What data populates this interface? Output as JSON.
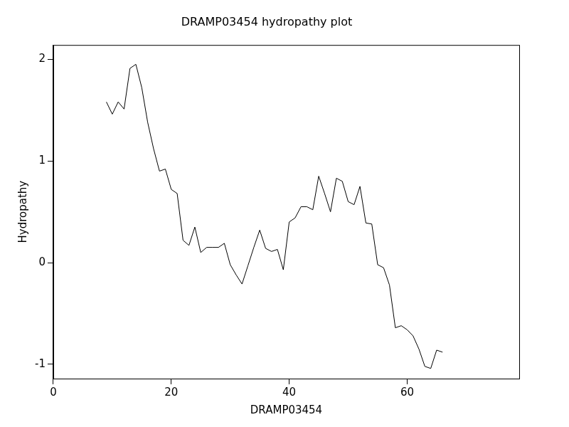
{
  "chart_data": {
    "type": "line",
    "title": "DRAMP03454 hydropathy plot",
    "x_label": "DRAMP03454",
    "y_label": "Hydropathy",
    "color": "#000000",
    "grid": false,
    "x": [
      9,
      10,
      11,
      12,
      13,
      14,
      15,
      16,
      17,
      18,
      19,
      20,
      21,
      22,
      23,
      24,
      25,
      26,
      27,
      28,
      29,
      30,
      31,
      32,
      33,
      34,
      35,
      36,
      37,
      38,
      39,
      40,
      41,
      42,
      43,
      44,
      45,
      46,
      47,
      48,
      49,
      50,
      51,
      52,
      53,
      54,
      55,
      56,
      57,
      58,
      59,
      60,
      61,
      62,
      63,
      64,
      65,
      66
    ],
    "values": [
      1.58,
      1.46,
      1.58,
      1.51,
      1.91,
      1.95,
      1.72,
      1.38,
      1.12,
      0.9,
      0.92,
      0.72,
      0.68,
      0.22,
      0.17,
      0.35,
      0.1,
      0.15,
      0.15,
      0.15,
      0.19,
      -0.02,
      -0.12,
      -0.21,
      -0.03,
      0.15,
      0.32,
      0.14,
      0.11,
      0.13,
      -0.07,
      0.4,
      0.44,
      0.55,
      0.55,
      0.52,
      0.85,
      0.68,
      0.5,
      0.83,
      0.8,
      0.6,
      0.57,
      0.75,
      0.39,
      0.38,
      -0.02,
      -0.05,
      -0.22,
      -0.64,
      -0.62,
      -0.66,
      -0.72,
      -0.85,
      -1.02,
      -1.04,
      -0.86,
      -0.88
    ],
    "xlim": [
      0,
      79
    ],
    "xticks": [
      0,
      20,
      40,
      60
    ],
    "ylim": [
      -1.14,
      2.14
    ],
    "yticks": [
      -1,
      0,
      1,
      2
    ]
  }
}
